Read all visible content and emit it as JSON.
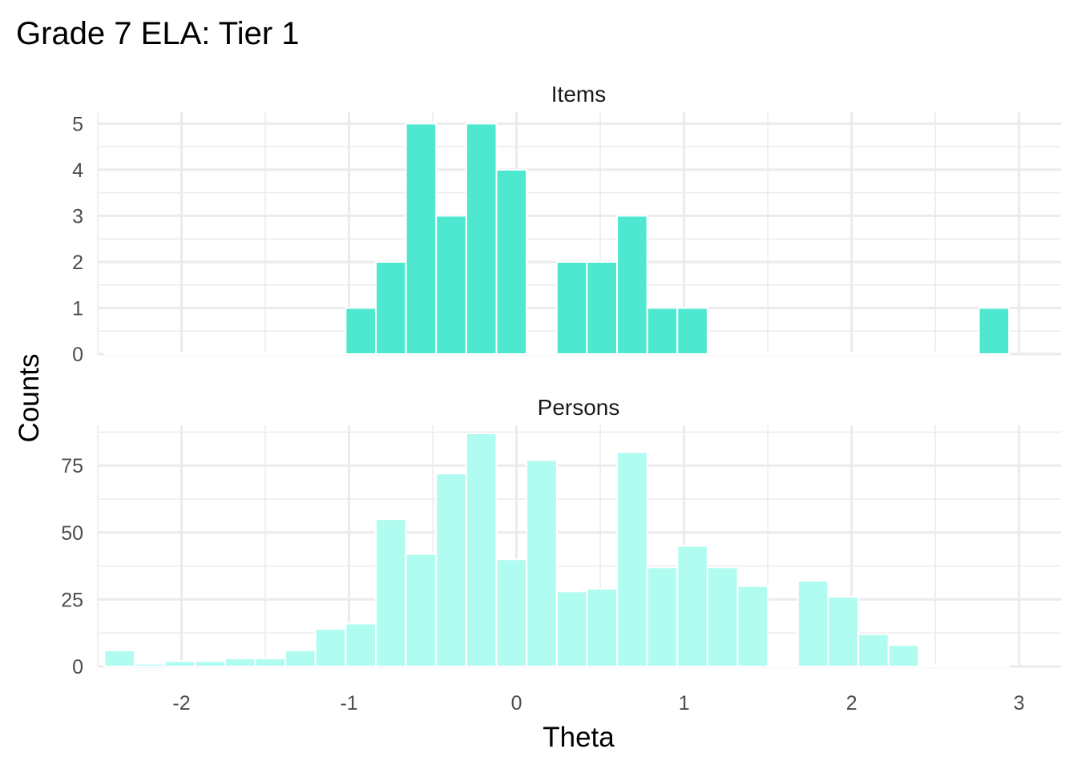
{
  "title": "Grade 7 ELA: Tier 1",
  "chart_data": {
    "type": "bar",
    "title": "Grade 7 ELA: Tier 1",
    "xlabel": "Theta",
    "ylabel": "Counts",
    "xlim": [
      -2.5,
      3.25
    ],
    "x_ticks": [
      -2,
      -1,
      0,
      1,
      2,
      3
    ],
    "x_tick_labels": [
      "-2",
      "-1",
      "0",
      "1",
      "2",
      "3"
    ],
    "bin_width": 0.18,
    "bin_centers": [
      -2.37,
      -2.19,
      -2.01,
      -1.83,
      -1.65,
      -1.47,
      -1.29,
      -1.11,
      -0.93,
      -0.75,
      -0.57,
      -0.39,
      -0.21,
      -0.03,
      0.15,
      0.33,
      0.51,
      0.69,
      0.87,
      1.05,
      1.23,
      1.41,
      1.59,
      1.77,
      1.95,
      2.13,
      2.31,
      2.49,
      2.67,
      2.85
    ],
    "grid": true,
    "panels": [
      {
        "name": "Items",
        "color": "#4ee8d0",
        "ylim": [
          0,
          5.25
        ],
        "y_ticks": [
          0,
          1,
          2,
          3,
          4,
          5
        ],
        "y_tick_labels": [
          "0",
          "1",
          "2",
          "3",
          "4",
          "5"
        ],
        "values": [
          0,
          0,
          0,
          0,
          0,
          0,
          0,
          0,
          1,
          2,
          5,
          3,
          5,
          4,
          0,
          2,
          2,
          3,
          1,
          1,
          0,
          0,
          0,
          0,
          0,
          0,
          0,
          0,
          0,
          1
        ]
      },
      {
        "name": "Persons",
        "color": "#b0fcf0",
        "ylim": [
          0,
          90
        ],
        "y_ticks": [
          0,
          25,
          50,
          75
        ],
        "y_tick_labels": [
          "0",
          "25",
          "50",
          "75"
        ],
        "values": [
          6,
          1,
          2,
          2,
          3,
          3,
          6,
          14,
          16,
          55,
          42,
          72,
          87,
          40,
          77,
          28,
          29,
          80,
          37,
          45,
          37,
          30,
          0,
          32,
          26,
          12,
          8,
          0,
          0,
          0
        ]
      }
    ]
  }
}
